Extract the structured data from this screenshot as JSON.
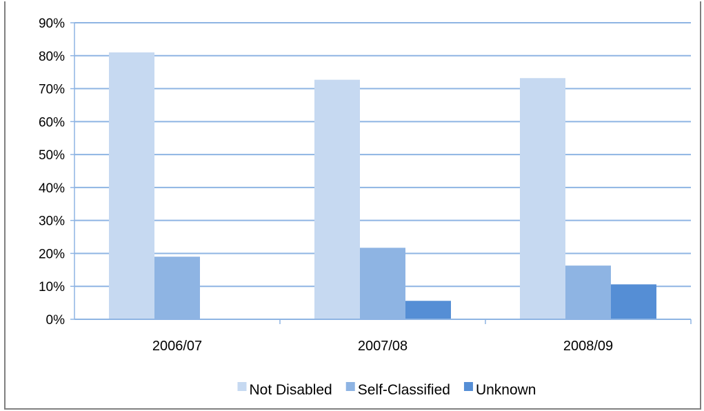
{
  "chart_data": {
    "type": "bar",
    "categories": [
      "2006/07",
      "2007/08",
      "2008/09"
    ],
    "series": [
      {
        "name": "Not Disabled",
        "values": [
          81,
          72.7,
          73.2
        ],
        "color": "#c6d9f1"
      },
      {
        "name": "Self-Classified",
        "values": [
          19,
          21.7,
          16.3
        ],
        "color": "#8eb4e3"
      },
      {
        "name": "Unknown",
        "values": [
          0,
          5.6,
          10.6
        ],
        "color": "#558ed5"
      }
    ],
    "ylim": [
      0,
      90
    ],
    "yticks": [
      "0%",
      "10%",
      "20%",
      "30%",
      "40%",
      "50%",
      "60%",
      "70%",
      "80%",
      "90%"
    ],
    "grid": true,
    "gridline_color": "#8eb4e3",
    "legend_position": "bottom"
  }
}
